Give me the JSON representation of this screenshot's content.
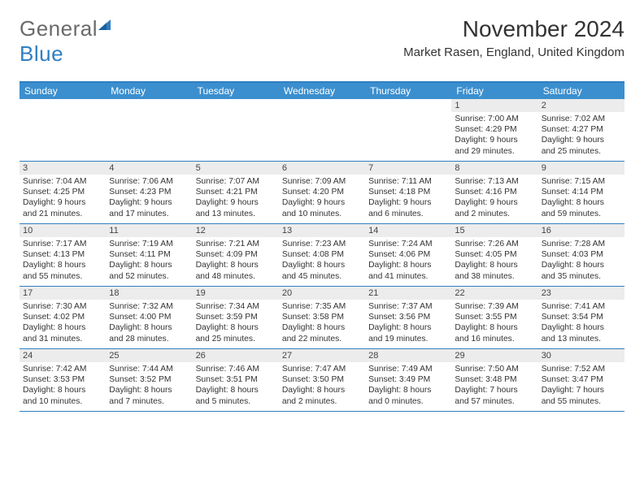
{
  "logo": {
    "general": "General",
    "blue": "Blue"
  },
  "header": {
    "title": "November 2024",
    "location": "Market Rasen, England, United Kingdom"
  },
  "colors": {
    "header_blue": "#3b8fcf",
    "border_blue": "#2f7fc1",
    "band_grey": "#ececec",
    "logo_grey": "#6a6a6a",
    "logo_blue": "#2f7fc1"
  },
  "daynames": [
    "Sunday",
    "Monday",
    "Tuesday",
    "Wednesday",
    "Thursday",
    "Friday",
    "Saturday"
  ],
  "weeks": [
    [
      {
        "n": "",
        "sr": "",
        "ss": "",
        "d1": "",
        "d2": "",
        "empty": true
      },
      {
        "n": "",
        "sr": "",
        "ss": "",
        "d1": "",
        "d2": "",
        "empty": true
      },
      {
        "n": "",
        "sr": "",
        "ss": "",
        "d1": "",
        "d2": "",
        "empty": true
      },
      {
        "n": "",
        "sr": "",
        "ss": "",
        "d1": "",
        "d2": "",
        "empty": true
      },
      {
        "n": "",
        "sr": "",
        "ss": "",
        "d1": "",
        "d2": "",
        "empty": true
      },
      {
        "n": "1",
        "sr": "Sunrise: 7:00 AM",
        "ss": "Sunset: 4:29 PM",
        "d1": "Daylight: 9 hours",
        "d2": "and 29 minutes."
      },
      {
        "n": "2",
        "sr": "Sunrise: 7:02 AM",
        "ss": "Sunset: 4:27 PM",
        "d1": "Daylight: 9 hours",
        "d2": "and 25 minutes."
      }
    ],
    [
      {
        "n": "3",
        "sr": "Sunrise: 7:04 AM",
        "ss": "Sunset: 4:25 PM",
        "d1": "Daylight: 9 hours",
        "d2": "and 21 minutes."
      },
      {
        "n": "4",
        "sr": "Sunrise: 7:06 AM",
        "ss": "Sunset: 4:23 PM",
        "d1": "Daylight: 9 hours",
        "d2": "and 17 minutes."
      },
      {
        "n": "5",
        "sr": "Sunrise: 7:07 AM",
        "ss": "Sunset: 4:21 PM",
        "d1": "Daylight: 9 hours",
        "d2": "and 13 minutes."
      },
      {
        "n": "6",
        "sr": "Sunrise: 7:09 AM",
        "ss": "Sunset: 4:20 PM",
        "d1": "Daylight: 9 hours",
        "d2": "and 10 minutes."
      },
      {
        "n": "7",
        "sr": "Sunrise: 7:11 AM",
        "ss": "Sunset: 4:18 PM",
        "d1": "Daylight: 9 hours",
        "d2": "and 6 minutes."
      },
      {
        "n": "8",
        "sr": "Sunrise: 7:13 AM",
        "ss": "Sunset: 4:16 PM",
        "d1": "Daylight: 9 hours",
        "d2": "and 2 minutes."
      },
      {
        "n": "9",
        "sr": "Sunrise: 7:15 AM",
        "ss": "Sunset: 4:14 PM",
        "d1": "Daylight: 8 hours",
        "d2": "and 59 minutes."
      }
    ],
    [
      {
        "n": "10",
        "sr": "Sunrise: 7:17 AM",
        "ss": "Sunset: 4:13 PM",
        "d1": "Daylight: 8 hours",
        "d2": "and 55 minutes."
      },
      {
        "n": "11",
        "sr": "Sunrise: 7:19 AM",
        "ss": "Sunset: 4:11 PM",
        "d1": "Daylight: 8 hours",
        "d2": "and 52 minutes."
      },
      {
        "n": "12",
        "sr": "Sunrise: 7:21 AM",
        "ss": "Sunset: 4:09 PM",
        "d1": "Daylight: 8 hours",
        "d2": "and 48 minutes."
      },
      {
        "n": "13",
        "sr": "Sunrise: 7:23 AM",
        "ss": "Sunset: 4:08 PM",
        "d1": "Daylight: 8 hours",
        "d2": "and 45 minutes."
      },
      {
        "n": "14",
        "sr": "Sunrise: 7:24 AM",
        "ss": "Sunset: 4:06 PM",
        "d1": "Daylight: 8 hours",
        "d2": "and 41 minutes."
      },
      {
        "n": "15",
        "sr": "Sunrise: 7:26 AM",
        "ss": "Sunset: 4:05 PM",
        "d1": "Daylight: 8 hours",
        "d2": "and 38 minutes."
      },
      {
        "n": "16",
        "sr": "Sunrise: 7:28 AM",
        "ss": "Sunset: 4:03 PM",
        "d1": "Daylight: 8 hours",
        "d2": "and 35 minutes."
      }
    ],
    [
      {
        "n": "17",
        "sr": "Sunrise: 7:30 AM",
        "ss": "Sunset: 4:02 PM",
        "d1": "Daylight: 8 hours",
        "d2": "and 31 minutes."
      },
      {
        "n": "18",
        "sr": "Sunrise: 7:32 AM",
        "ss": "Sunset: 4:00 PM",
        "d1": "Daylight: 8 hours",
        "d2": "and 28 minutes."
      },
      {
        "n": "19",
        "sr": "Sunrise: 7:34 AM",
        "ss": "Sunset: 3:59 PM",
        "d1": "Daylight: 8 hours",
        "d2": "and 25 minutes."
      },
      {
        "n": "20",
        "sr": "Sunrise: 7:35 AM",
        "ss": "Sunset: 3:58 PM",
        "d1": "Daylight: 8 hours",
        "d2": "and 22 minutes."
      },
      {
        "n": "21",
        "sr": "Sunrise: 7:37 AM",
        "ss": "Sunset: 3:56 PM",
        "d1": "Daylight: 8 hours",
        "d2": "and 19 minutes."
      },
      {
        "n": "22",
        "sr": "Sunrise: 7:39 AM",
        "ss": "Sunset: 3:55 PM",
        "d1": "Daylight: 8 hours",
        "d2": "and 16 minutes."
      },
      {
        "n": "23",
        "sr": "Sunrise: 7:41 AM",
        "ss": "Sunset: 3:54 PM",
        "d1": "Daylight: 8 hours",
        "d2": "and 13 minutes."
      }
    ],
    [
      {
        "n": "24",
        "sr": "Sunrise: 7:42 AM",
        "ss": "Sunset: 3:53 PM",
        "d1": "Daylight: 8 hours",
        "d2": "and 10 minutes."
      },
      {
        "n": "25",
        "sr": "Sunrise: 7:44 AM",
        "ss": "Sunset: 3:52 PM",
        "d1": "Daylight: 8 hours",
        "d2": "and 7 minutes."
      },
      {
        "n": "26",
        "sr": "Sunrise: 7:46 AM",
        "ss": "Sunset: 3:51 PM",
        "d1": "Daylight: 8 hours",
        "d2": "and 5 minutes."
      },
      {
        "n": "27",
        "sr": "Sunrise: 7:47 AM",
        "ss": "Sunset: 3:50 PM",
        "d1": "Daylight: 8 hours",
        "d2": "and 2 minutes."
      },
      {
        "n": "28",
        "sr": "Sunrise: 7:49 AM",
        "ss": "Sunset: 3:49 PM",
        "d1": "Daylight: 8 hours",
        "d2": "and 0 minutes."
      },
      {
        "n": "29",
        "sr": "Sunrise: 7:50 AM",
        "ss": "Sunset: 3:48 PM",
        "d1": "Daylight: 7 hours",
        "d2": "and 57 minutes."
      },
      {
        "n": "30",
        "sr": "Sunrise: 7:52 AM",
        "ss": "Sunset: 3:47 PM",
        "d1": "Daylight: 7 hours",
        "d2": "and 55 minutes."
      }
    ]
  ]
}
